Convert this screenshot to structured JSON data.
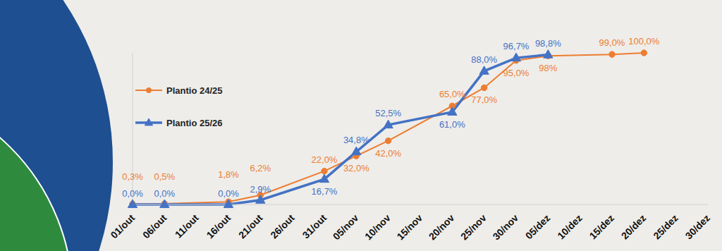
{
  "chart_data": {
    "type": "line",
    "categories": [
      "01/out",
      "06/out",
      "11/out",
      "16/out",
      "21/out",
      "26/out",
      "31/out",
      "05/nov",
      "10/nov",
      "15/nov",
      "20/nov",
      "25/nov",
      "30/nov",
      "05/dez",
      "10/dez",
      "15/dez",
      "20/dez",
      "25/dez",
      "30/dez"
    ],
    "series": [
      {
        "name": "Plantio 24/25",
        "color": "#ed7d31",
        "marker": "circle",
        "line_style": "solid",
        "values": [
          0.3,
          0.5,
          null,
          1.8,
          6.2,
          null,
          22.0,
          32.0,
          42.0,
          null,
          65.0,
          77.0,
          95.0,
          98,
          null,
          99.0,
          100.0,
          null,
          null
        ],
        "value_labels": [
          "0,3%",
          "0,5%",
          null,
          "1,8%",
          "6,2%",
          null,
          "22,0%",
          "32,0%",
          "42,0%",
          null,
          "65,0%",
          "77,0%",
          "95,0%",
          "98%",
          null,
          "99,0%",
          "100,0%",
          null,
          null
        ]
      },
      {
        "name": "Plantio 25/26",
        "color": "#4472c4",
        "marker": "triangle",
        "line_style": "solid",
        "values": [
          0.0,
          0.0,
          null,
          0.0,
          2.9,
          null,
          16.7,
          34.8,
          52.5,
          null,
          61.0,
          88.0,
          96.7,
          98.8,
          null,
          null,
          null,
          null,
          null
        ],
        "value_labels": [
          "0,0%",
          "0,0%",
          null,
          "0,0%",
          "2,9%",
          null,
          "16,7%",
          "34,8%",
          "52,5%",
          null,
          "61,0%",
          "88,0%",
          "96,7%",
          "98,8%",
          null,
          null,
          null,
          null,
          null
        ]
      }
    ],
    "ylim": [
      0,
      100
    ],
    "tick_labels": "x",
    "data_labels": true,
    "grid": false,
    "legend": "left"
  }
}
